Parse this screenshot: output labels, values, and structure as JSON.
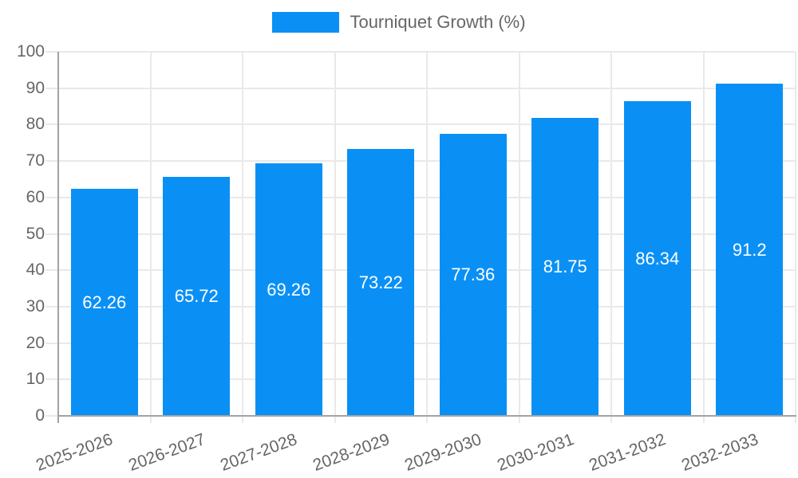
{
  "colors": {
    "bar": "#0a90f5",
    "axis": "#a3a3a3",
    "grid": "#e9e9e9",
    "text": "#666666",
    "value_text": "#ffffff"
  },
  "chart_data": {
    "type": "bar",
    "title": "Tourniquet Growth (%)",
    "legend_entries": [
      "Tourniquet Growth (%)"
    ],
    "legend_position": "top",
    "categories": [
      "2025-2026",
      "2026-2027",
      "2027-2028",
      "2028-2029",
      "2029-2030",
      "2030-2031",
      "2031-2032",
      "2032-2033"
    ],
    "values": [
      62.26,
      65.72,
      69.26,
      73.22,
      77.36,
      81.75,
      86.34,
      91.2
    ],
    "value_labels": [
      "62.26",
      "65.72",
      "69.26",
      "73.22",
      "77.36",
      "81.75",
      "86.34",
      "91.2"
    ],
    "xlabel": "",
    "ylabel": "",
    "ylim": [
      0,
      100
    ],
    "yticks": [
      0,
      10,
      20,
      30,
      40,
      50,
      60,
      70,
      80,
      90,
      100
    ],
    "grid": true,
    "x_label_rotation_deg": -20
  }
}
